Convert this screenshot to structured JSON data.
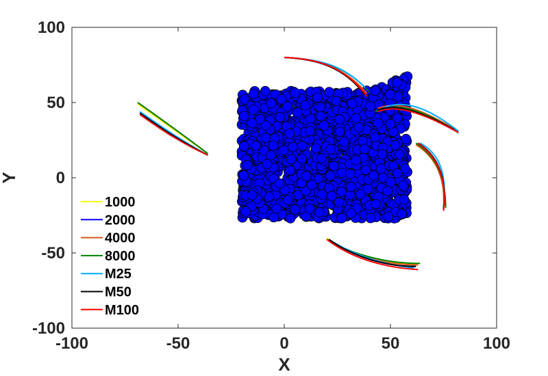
{
  "chart_data": {
    "type": "scatter",
    "title": "",
    "xlabel": "X",
    "ylabel": "Y",
    "xlim": [
      -100,
      100
    ],
    "ylim": [
      -100,
      100
    ],
    "xticks": [
      -100,
      -50,
      0,
      50,
      100
    ],
    "yticks": [
      -100,
      -50,
      0,
      50,
      100
    ],
    "xtick_labels": [
      "-100",
      "-50",
      "0",
      "50",
      "100"
    ],
    "ytick_labels": [
      "-100",
      "-50",
      "0",
      "50",
      "100"
    ],
    "grid": false,
    "legend_position": "bottom-left",
    "particle_cloud": {
      "x_range": [
        -20,
        58
      ],
      "y_range": [
        -27,
        68
      ],
      "fill": "#0000ff",
      "edge": "#000000"
    },
    "series": [
      {
        "name": "1000",
        "color": "#ffff00",
        "tracks": [
          [
            [
              -69,
              49
            ],
            [
              -60,
              40
            ],
            [
              -50,
              30
            ],
            [
              -36,
              16
            ]
          ],
          [
            [
              0,
              80
            ],
            [
              15,
              79
            ],
            [
              28,
              74
            ],
            [
              38,
              55
            ]
          ],
          [
            [
              43,
              44
            ],
            [
              50,
              50
            ],
            [
              60,
              48
            ],
            [
              81,
              31
            ]
          ],
          [
            [
              62,
              22
            ],
            [
              70,
              15
            ],
            [
              76,
              2
            ],
            [
              76,
              -20
            ]
          ],
          [
            [
              20,
              -40
            ],
            [
              32,
              -52
            ],
            [
              48,
              -58
            ],
            [
              63,
              -57
            ]
          ]
        ]
      },
      {
        "name": "2000",
        "color": "#0000ff",
        "tracks": [
          [
            [
              -68,
              43
            ],
            [
              -60,
              35
            ],
            [
              -50,
              25
            ],
            [
              -36,
              15
            ]
          ],
          [
            [
              0,
              80
            ],
            [
              15,
              79
            ],
            [
              28,
              74
            ],
            [
              39,
              55
            ]
          ],
          [
            [
              44,
              45
            ],
            [
              51,
              50
            ],
            [
              61,
              47
            ],
            [
              80,
              32
            ]
          ],
          [
            [
              63,
              23
            ],
            [
              71,
              16
            ],
            [
              77,
              2
            ],
            [
              75,
              -21
            ]
          ],
          [
            [
              21,
              -41
            ],
            [
              33,
              -53
            ],
            [
              48,
              -59
            ],
            [
              62,
              -59
            ]
          ]
        ]
      },
      {
        "name": "4000",
        "color": "#d95319",
        "tracks": [
          [
            [
              -69,
              50
            ],
            [
              -60,
              41
            ],
            [
              -50,
              31
            ],
            [
              -36,
              16
            ]
          ],
          [
            [
              0,
              80
            ],
            [
              15,
              79
            ],
            [
              28,
              74
            ],
            [
              39,
              56
            ]
          ],
          [
            [
              44,
              46
            ],
            [
              52,
              51
            ],
            [
              62,
              48
            ],
            [
              82,
              31
            ]
          ],
          [
            [
              62,
              22
            ],
            [
              70,
              15
            ],
            [
              76,
              3
            ],
            [
              75,
              -20
            ]
          ],
          [
            [
              20,
              -41
            ],
            [
              32,
              -52
            ],
            [
              48,
              -58
            ],
            [
              63,
              -58
            ]
          ]
        ]
      },
      {
        "name": "8000",
        "color": "#008000",
        "tracks": [
          [
            [
              -69,
              50
            ],
            [
              -60,
              41
            ],
            [
              -50,
              31
            ],
            [
              -36,
              16
            ]
          ],
          [
            [
              0,
              80
            ],
            [
              15,
              79
            ],
            [
              29,
              75
            ],
            [
              40,
              57
            ]
          ],
          [
            [
              43,
              44
            ],
            [
              51,
              50
            ],
            [
              62,
              48
            ],
            [
              82,
              30
            ]
          ],
          [
            [
              62,
              23
            ],
            [
              70,
              16
            ],
            [
              76,
              3
            ],
            [
              76,
              -20
            ]
          ],
          [
            [
              20,
              -41
            ],
            [
              32,
              -51
            ],
            [
              48,
              -57
            ],
            [
              64,
              -57
            ]
          ]
        ]
      },
      {
        "name": "M25",
        "color": "#00aaff",
        "tracks": [
          [
            [
              -68,
              44
            ],
            [
              -60,
              36
            ],
            [
              -50,
              26
            ],
            [
              -36,
              15
            ]
          ],
          [
            [
              0,
              80
            ],
            [
              15,
              79
            ],
            [
              27,
              76
            ],
            [
              38,
              60
            ]
          ],
          [
            [
              45,
              45
            ],
            [
              52,
              51
            ],
            [
              63,
              52
            ],
            [
              82,
              31
            ]
          ],
          [
            [
              64,
              23
            ],
            [
              72,
              17
            ],
            [
              77,
              5
            ],
            [
              75,
              -20
            ]
          ],
          [
            [
              21,
              -41
            ],
            [
              33,
              -52
            ],
            [
              48,
              -58
            ],
            [
              61,
              -60
            ]
          ]
        ]
      },
      {
        "name": "M50",
        "color": "#000000",
        "tracks": [
          [
            [
              -68,
              43
            ],
            [
              -60,
              35
            ],
            [
              -50,
              25
            ],
            [
              -36,
              15
            ]
          ],
          [
            [
              0,
              80
            ],
            [
              15,
              79
            ],
            [
              28,
              74
            ],
            [
              38,
              55
            ]
          ],
          [
            [
              44,
              45
            ],
            [
              51,
              49
            ],
            [
              62,
              46
            ],
            [
              80,
              32
            ]
          ],
          [
            [
              63,
              23
            ],
            [
              71,
              16
            ],
            [
              77,
              2
            ],
            [
              75,
              -21
            ]
          ],
          [
            [
              21,
              -41
            ],
            [
              33,
              -53
            ],
            [
              48,
              -59
            ],
            [
              62,
              -59
            ]
          ]
        ]
      },
      {
        "name": "M100",
        "color": "#ff0000",
        "tracks": [
          [
            [
              -68,
              42
            ],
            [
              -60,
              34
            ],
            [
              -50,
              24
            ],
            [
              -36,
              15
            ]
          ],
          [
            [
              0,
              80
            ],
            [
              15,
              79
            ],
            [
              28,
              75
            ],
            [
              39,
              54
            ]
          ],
          [
            [
              44,
              44
            ],
            [
              51,
              48
            ],
            [
              62,
              46
            ],
            [
              82,
              30
            ]
          ],
          [
            [
              63,
              23
            ],
            [
              71,
              15
            ],
            [
              77,
              1
            ],
            [
              75,
              -22
            ]
          ],
          [
            [
              20,
              -41
            ],
            [
              32,
              -54
            ],
            [
              48,
              -60
            ],
            [
              63,
              -61
            ]
          ]
        ]
      }
    ]
  }
}
